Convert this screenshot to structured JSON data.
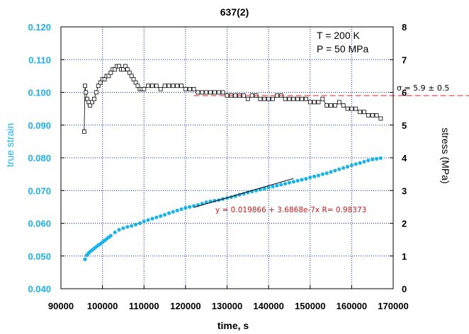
{
  "chart_data": {
    "type": "scatter",
    "title": "637(2)",
    "xlabel": "time, s",
    "ylabel_left": "true strain",
    "ylabel_right": "stress (MPa)",
    "xlim": [
      90000,
      170000
    ],
    "ylim_left": [
      0.04,
      0.12
    ],
    "ylim_right": [
      0,
      8
    ],
    "x_ticks": [
      "90000",
      "100000",
      "110000",
      "120000",
      "130000",
      "140000",
      "150000",
      "160000",
      "170000"
    ],
    "y_left_ticks": [
      "0.040",
      "0.050",
      "0.060",
      "0.070",
      "0.080",
      "0.090",
      "0.100",
      "0.110",
      "0.120"
    ],
    "y_right_ticks": [
      "0",
      "1",
      "2",
      "3",
      "4",
      "5",
      "6",
      "7",
      "8"
    ],
    "grid": true,
    "annotations": {
      "temperature": "T = 200 K",
      "pressure": "P = 50 MPa",
      "fit": "y = 0.019866 + 3.6868e-7x   R= 0.98373",
      "sigma": "σ = 5.9 ± 0.5"
    },
    "fit_line": {
      "intercept": 0.019866,
      "slope": 3.6868e-07,
      "r": 0.98373,
      "x_range": [
        122000,
        146000
      ]
    },
    "stress_mean_level": 5.9,
    "colors": {
      "strain": "#19b3ec",
      "stress": "#000000",
      "fit": "#000000",
      "sigma_line": "#e02020",
      "grid": "#0a23c8"
    },
    "series": [
      {
        "name": "true strain",
        "axis": "left",
        "marker": "filled-circle",
        "x": [
          95800,
          96200,
          96600,
          97000,
          97500,
          98000,
          98500,
          99000,
          99500,
          100000,
          100500,
          101000,
          101500,
          102000,
          103000,
          104000,
          105000,
          106000,
          107000,
          108000,
          109000,
          110000,
          111000,
          112000,
          113000,
          114000,
          115000,
          116000,
          117000,
          118000,
          119000,
          120000,
          121000,
          122000,
          123000,
          124000,
          125000,
          126000,
          127000,
          128000,
          129000,
          130000,
          131000,
          132000,
          133000,
          134000,
          135000,
          136000,
          137000,
          138000,
          139000,
          140000,
          141000,
          142000,
          143000,
          144000,
          145000,
          146000,
          147000,
          148000,
          149000,
          150000,
          151000,
          152000,
          153000,
          154000,
          155000,
          156000,
          157000,
          158000,
          159000,
          160000,
          161000,
          162000,
          163000,
          164000,
          165000,
          166000,
          167000
        ],
        "y": [
          0.049,
          0.0502,
          0.0508,
          0.0513,
          0.0518,
          0.0523,
          0.0528,
          0.0533,
          0.0537,
          0.0542,
          0.0547,
          0.0552,
          0.0557,
          0.0562,
          0.0572,
          0.058,
          0.0585,
          0.0589,
          0.0592,
          0.0596,
          0.06,
          0.0606,
          0.061,
          0.0614,
          0.0618,
          0.0622,
          0.0626,
          0.0631,
          0.0635,
          0.0639,
          0.0643,
          0.0647,
          0.065,
          0.0653,
          0.0656,
          0.066,
          0.0664,
          0.0667,
          0.0669,
          0.0671,
          0.0674,
          0.0677,
          0.068,
          0.0683,
          0.0687,
          0.069,
          0.0694,
          0.0697,
          0.07,
          0.0703,
          0.0706,
          0.0709,
          0.0712,
          0.0715,
          0.0718,
          0.0721,
          0.0724,
          0.0727,
          0.073,
          0.0733,
          0.0736,
          0.074,
          0.0743,
          0.0746,
          0.075,
          0.0753,
          0.0757,
          0.0761,
          0.0765,
          0.0769,
          0.0773,
          0.0777,
          0.0781,
          0.0784,
          0.0788,
          0.0792,
          0.0795,
          0.0797,
          0.0799
        ]
      },
      {
        "name": "stress",
        "axis": "right",
        "marker": "open-square",
        "x": [
          95600,
          95800,
          96000,
          96300,
          96700,
          97000,
          97500,
          98000,
          98500,
          99000,
          99500,
          100000,
          100500,
          101000,
          101500,
          102000,
          102500,
          103000,
          103500,
          104000,
          104500,
          105000,
          105500,
          106000,
          106500,
          107000,
          107500,
          108000,
          108500,
          109000,
          109500,
          110000,
          111000,
          112000,
          113000,
          114000,
          115000,
          116000,
          117000,
          118000,
          119000,
          120000,
          121000,
          122000,
          123000,
          124000,
          125000,
          126000,
          127000,
          128000,
          129000,
          130000,
          131000,
          132000,
          133000,
          134000,
          135000,
          136000,
          137000,
          138000,
          139000,
          140000,
          141000,
          142000,
          143000,
          144000,
          145000,
          146000,
          147000,
          148000,
          149000,
          150000,
          151000,
          152000,
          153000,
          154000,
          155000,
          156000,
          157000,
          158000,
          159000,
          160000,
          161000,
          162000,
          163000,
          164000,
          165000,
          166000,
          167000
        ],
        "y": [
          4.8,
          6.2,
          6.0,
          5.8,
          5.7,
          5.6,
          5.7,
          5.8,
          6.0,
          6.2,
          6.3,
          6.4,
          6.4,
          6.5,
          6.5,
          6.6,
          6.7,
          6.7,
          6.8,
          6.8,
          6.7,
          6.7,
          6.8,
          6.7,
          6.6,
          6.5,
          6.4,
          6.3,
          6.2,
          6.1,
          6.1,
          6.1,
          6.2,
          6.2,
          6.2,
          6.1,
          6.2,
          6.2,
          6.2,
          6.2,
          6.2,
          6.1,
          6.1,
          6.1,
          6.0,
          6.0,
          6.0,
          6.0,
          6.0,
          6.0,
          6.0,
          5.9,
          5.9,
          5.9,
          5.9,
          5.9,
          5.8,
          5.9,
          5.9,
          5.8,
          5.8,
          5.8,
          5.8,
          5.9,
          5.9,
          5.8,
          5.8,
          5.8,
          5.8,
          5.8,
          5.8,
          5.7,
          5.7,
          5.7,
          5.8,
          5.6,
          5.6,
          5.6,
          5.7,
          5.6,
          5.5,
          5.5,
          5.5,
          5.4,
          5.4,
          5.3,
          5.3,
          5.3,
          5.2
        ]
      }
    ]
  }
}
